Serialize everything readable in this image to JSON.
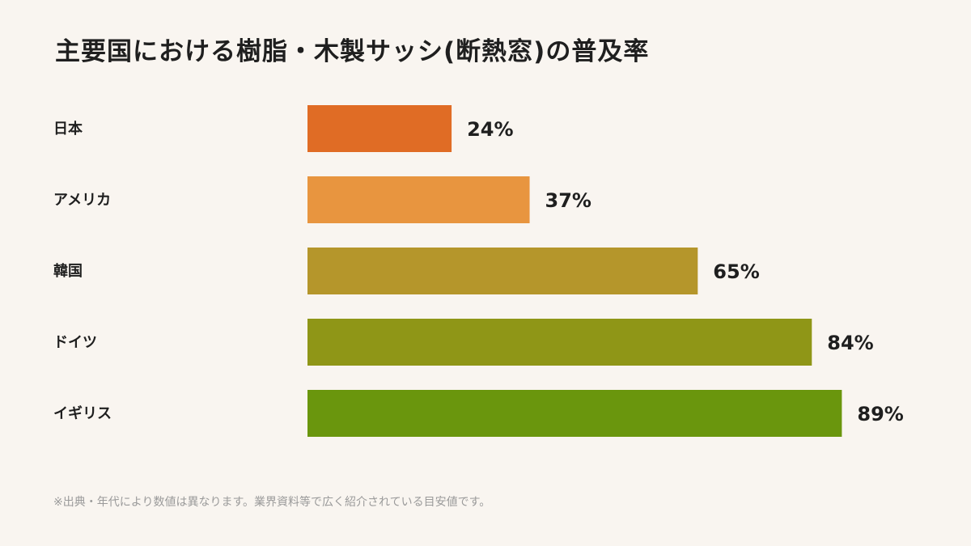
{
  "chart_data": {
    "type": "bar",
    "orientation": "horizontal",
    "title": "主要国における樹脂・木製サッシ(断熱窓)の普及率",
    "categories": [
      "日本",
      "アメリカ",
      "韓国",
      "ドイツ",
      "イギリス"
    ],
    "values": [
      24,
      37,
      65,
      84,
      89
    ],
    "value_labels": [
      "24%",
      "37%",
      "65%",
      "84%",
      "89%"
    ],
    "colors": [
      "#e06c25",
      "#e8953f",
      "#b5962b",
      "#8f9617",
      "#6a960d"
    ],
    "xlim": [
      0,
      100
    ],
    "grid": false,
    "legend": "none"
  },
  "footnote": "※出典・年代により数値は異なります。業界資料等で広く紹介されている目安値です。"
}
